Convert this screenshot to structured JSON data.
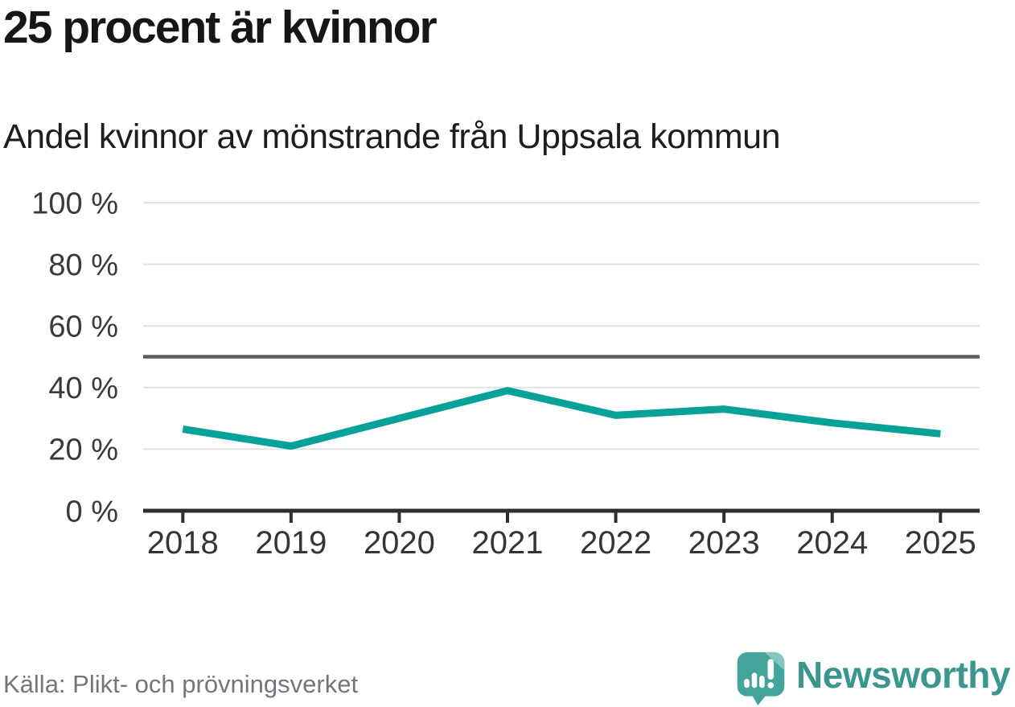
{
  "header": {
    "title": "25 procent är kvinnor",
    "subtitle": "Andel kvinnor av mönstrande från Uppsala kommun"
  },
  "footer": {
    "source_label": "Källa: Plikt- och prövningsverket",
    "brand_name": "Newsworthy"
  },
  "icons": {
    "brand_icon": "newsworthy-speech-bubble-chart-icon"
  },
  "colors": {
    "title_text": "#161616",
    "subtitle_text": "#1d1d1d",
    "line": "#06a198",
    "grid": "#e2e2e2",
    "reference_line": "#5e5e66",
    "axis": "#2f2f2f",
    "tick_label": "#3a3a3a",
    "source_text": "#75757d",
    "brand_teal": "#43a49c",
    "brand_teal_light": "#85c6be",
    "brand_wordmark": "#3a968f"
  },
  "chart_data": {
    "type": "line",
    "title": "25 procent är kvinnor",
    "subtitle": "Andel kvinnor av mönstrande från Uppsala kommun",
    "x": [
      2018,
      2019,
      2020,
      2021,
      2022,
      2023,
      2024,
      2025
    ],
    "series": [
      {
        "name": "Andel kvinnor av mönstrande",
        "values": [
          26.5,
          21,
          30,
          39,
          31,
          33,
          28.5,
          25
        ]
      }
    ],
    "xlabel": "",
    "ylabel": "",
    "ylim": [
      0,
      100
    ],
    "yticks": [
      0,
      20,
      40,
      60,
      80,
      100
    ],
    "ytick_suffix": " %",
    "reference_line": 50,
    "grid": "horizontal",
    "legend": "none"
  }
}
